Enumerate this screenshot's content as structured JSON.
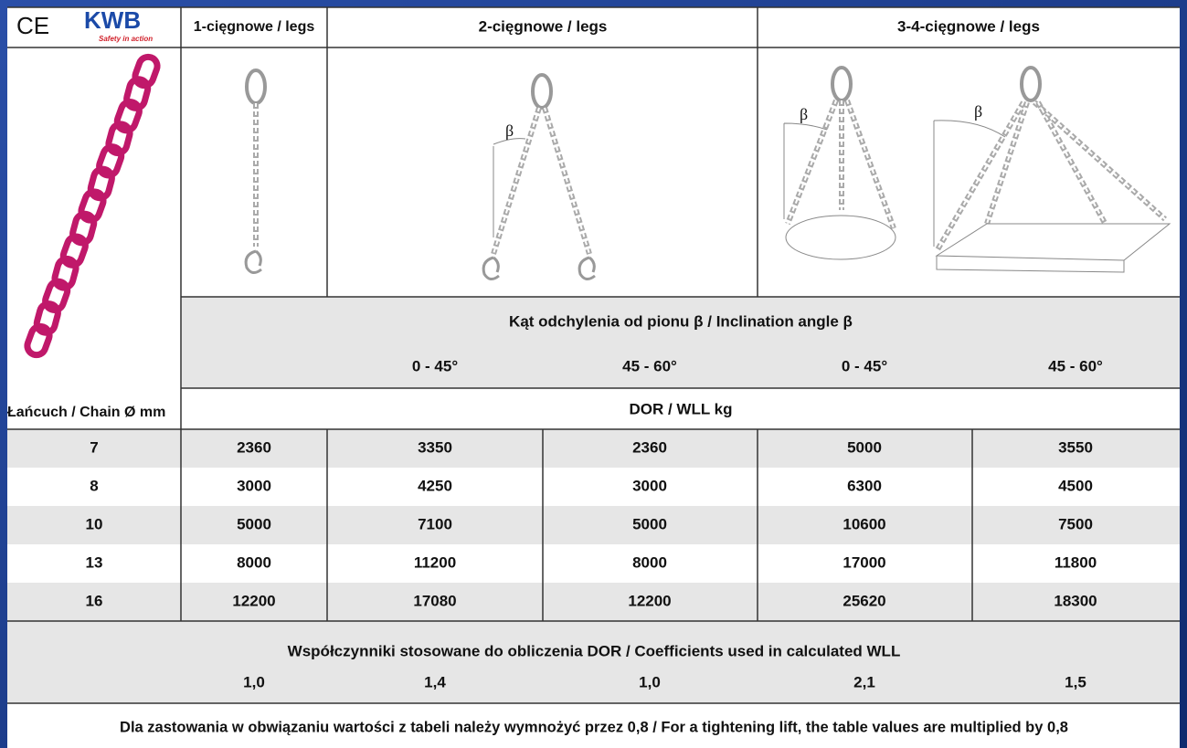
{
  "header": {
    "ce": "CE",
    "brand": "KWB",
    "tagline": "Safety in action",
    "col1": "1-cięgnowe / legs",
    "col2": "2-cięgnowe / legs",
    "col3": "3-4-cięgnowe / legs"
  },
  "illustrations": {
    "angle_symbol": "β"
  },
  "table": {
    "angle_title": "Kąt odchylenia od pionu β / Inclination angle β",
    "angles": [
      "0 - 45°",
      "45 - 60°",
      "0 - 45°",
      "45 - 60°"
    ],
    "chain_label": "Łańcuch / Chain Ø mm",
    "unit_label": "DOR / WLL kg",
    "rows": [
      [
        7,
        2360,
        3350,
        2360,
        5000,
        3550
      ],
      [
        8,
        3000,
        4250,
        3000,
        6300,
        4500
      ],
      [
        10,
        5000,
        7100,
        5000,
        10600,
        7500
      ],
      [
        13,
        8000,
        11200,
        8000,
        17000,
        11800
      ],
      [
        16,
        12200,
        17080,
        12200,
        25620,
        18300
      ]
    ]
  },
  "coefficients": {
    "title": "Współczynniki stosowane do obliczenia DOR / Coefficients used in calculated WLL",
    "values": [
      "1,0",
      "1,4",
      "1,0",
      "2,1",
      "1,5"
    ]
  },
  "footnote": "Dla zastowania w obwiązaniu wartości z tabeli należy wymnożyć przez 0,8 / For a tightening lift, the table values are multiplied by 0,8"
}
